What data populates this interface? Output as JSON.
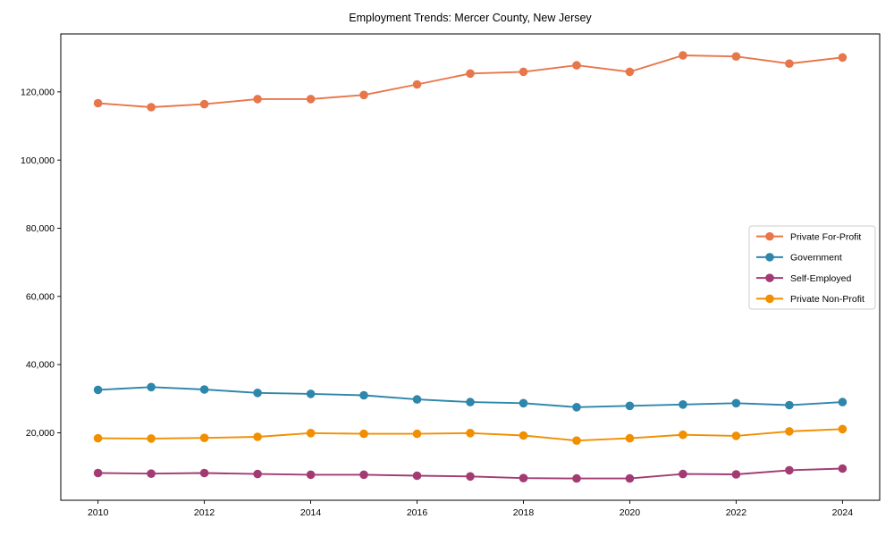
{
  "title": "Employment Trends: Mercer County, New Jersey",
  "chart_data": {
    "type": "line",
    "title": "Employment Trends: Mercer County, New Jersey",
    "xlabel": "",
    "ylabel": "",
    "x": [
      2010,
      2011,
      2012,
      2013,
      2014,
      2015,
      2016,
      2017,
      2018,
      2019,
      2020,
      2021,
      2022,
      2023,
      2024
    ],
    "series": [
      {
        "name": "Private For-Profit",
        "color": "#E8764B",
        "values": [
          116700,
          115500,
          116400,
          117900,
          117900,
          119100,
          122200,
          125400,
          125900,
          127800,
          125900,
          130700,
          130400,
          128300,
          130100
        ]
      },
      {
        "name": "Government",
        "color": "#2E86AB",
        "values": [
          32600,
          33400,
          32700,
          31700,
          31400,
          31000,
          29800,
          29000,
          28700,
          27500,
          27900,
          28300,
          28700,
          28100,
          29000
        ]
      },
      {
        "name": "Self-Employed",
        "color": "#A23B72",
        "values": [
          8200,
          8000,
          8200,
          7900,
          7700,
          7700,
          7400,
          7200,
          6700,
          6600,
          6600,
          7900,
          7800,
          9000,
          9500
        ]
      },
      {
        "name": "Private Non-Profit",
        "color": "#F18F01",
        "values": [
          18400,
          18300,
          18500,
          18800,
          19900,
          19700,
          19700,
          19900,
          19200,
          17700,
          18400,
          19400,
          19100,
          20400,
          21100
        ]
      }
    ],
    "xlim": [
      2009.3,
      2024.7
    ],
    "ylim": [
      200,
      137000
    ],
    "x_ticks": {
      "values": [
        2010,
        2012,
        2014,
        2016,
        2018,
        2020,
        2022,
        2024
      ],
      "labels": [
        "2010",
        "2012",
        "2014",
        "2016",
        "2018",
        "2020",
        "2022",
        "2024"
      ]
    },
    "y_ticks": {
      "values": [
        20000,
        40000,
        60000,
        80000,
        100000,
        120000
      ],
      "labels": [
        "20,000",
        "40,000",
        "60,000",
        "80,000",
        "100,000",
        "120,000"
      ]
    },
    "grid": false,
    "marker": "circle",
    "legend_position": "center-right",
    "legend_entries": [
      "Private For-Profit",
      "Government",
      "Self-Employed",
      "Private Non-Profit"
    ]
  }
}
